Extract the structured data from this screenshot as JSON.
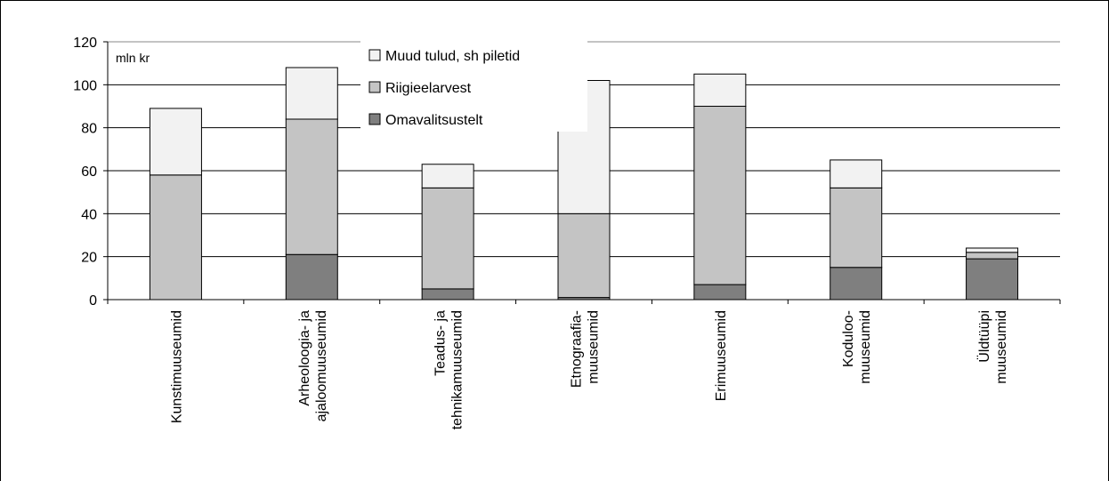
{
  "chart_data": {
    "type": "stacked_bar",
    "y_label": "mln kr",
    "categories": [
      [
        "Kunstimuuseumid"
      ],
      [
        "Arheoloogia- ja",
        "ajaloomuuseumid"
      ],
      [
        "Teadus- ja",
        "tehnikamuuseumid"
      ],
      [
        "Etnograafia-",
        "muuseumid"
      ],
      [
        "Erimuuseumid"
      ],
      [
        "Koduloo-",
        "muuseumid"
      ],
      [
        "Üldtüüpi",
        "muuseumid"
      ]
    ],
    "series": [
      {
        "name": "Omavalitsustelt",
        "color": "#7f7f7f",
        "values": [
          0,
          21,
          5,
          1,
          7,
          15,
          19
        ]
      },
      {
        "name": "Riigieelarvest",
        "color": "#c4c4c4",
        "values": [
          58,
          63,
          47,
          39,
          83,
          37,
          3
        ]
      },
      {
        "name": "Muud tulud, sh piletid",
        "color": "#f2f2f2",
        "values": [
          31,
          24,
          11,
          62,
          15,
          13,
          2
        ]
      }
    ],
    "ylim": [
      0,
      120
    ],
    "yticks": [
      0,
      20,
      40,
      60,
      80,
      100,
      120
    ],
    "grid": true,
    "legend": "top"
  }
}
